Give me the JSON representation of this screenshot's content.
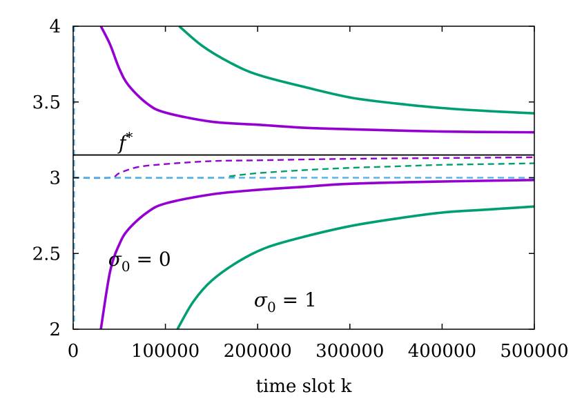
{
  "chart_data": {
    "type": "line",
    "xlabel": "time slot k",
    "ylabel": "",
    "xlim": [
      0,
      500000
    ],
    "ylim": [
      2,
      4
    ],
    "x_ticks": [
      0,
      100000,
      200000,
      300000,
      400000,
      500000
    ],
    "x_tick_labels": [
      "0",
      "100000",
      "200000",
      "300000",
      "400000",
      "500000"
    ],
    "y_ticks": [
      2,
      2.5,
      3,
      3.5,
      4
    ],
    "y_tick_labels": [
      "2",
      "2.5",
      "3",
      "3.5",
      "4"
    ],
    "grid": false,
    "reference_line": {
      "label": "f*",
      "y": 3.15,
      "color": "#000000"
    },
    "annotations": {
      "sigma0": {
        "prefix": "σ",
        "sub": "0",
        "eq": " = 0"
      },
      "sigma1": {
        "prefix": "σ",
        "sub": "0",
        "eq": " = 1"
      }
    },
    "series": [
      {
        "color": "#9400d3",
        "style": "solid",
        "x": [
          30000,
          40000,
          50000,
          60000,
          80000,
          100000,
          150000,
          200000,
          250000,
          300000,
          400000,
          500000
        ],
        "y": [
          4.0,
          3.88,
          3.72,
          3.61,
          3.49,
          3.43,
          3.37,
          3.35,
          3.33,
          3.32,
          3.305,
          3.3
        ]
      },
      {
        "color": "#9400d3",
        "style": "solid",
        "x": [
          30000,
          40000,
          50000,
          60000,
          80000,
          100000,
          150000,
          200000,
          250000,
          300000,
          400000,
          500000
        ],
        "y": [
          2.0,
          2.38,
          2.56,
          2.66,
          2.77,
          2.83,
          2.89,
          2.92,
          2.94,
          2.96,
          2.975,
          2.985
        ]
      },
      {
        "color": "#009e73",
        "style": "solid",
        "x": [
          115000,
          140000,
          170000,
          200000,
          250000,
          300000,
          350000,
          400000,
          450000,
          500000
        ],
        "y": [
          4.0,
          3.87,
          3.76,
          3.68,
          3.6,
          3.53,
          3.49,
          3.46,
          3.44,
          3.425
        ]
      },
      {
        "color": "#009e73",
        "style": "solid",
        "x": [
          113000,
          130000,
          150000,
          180000,
          210000,
          250000,
          300000,
          350000,
          400000,
          450000,
          500000
        ],
        "y": [
          2.0,
          2.18,
          2.32,
          2.45,
          2.54,
          2.61,
          2.68,
          2.73,
          2.77,
          2.79,
          2.81
        ]
      },
      {
        "color": "#9400d3",
        "style": "dashed",
        "x": [
          0,
          40000,
          50000,
          70000,
          100000,
          150000,
          200000,
          300000,
          400000,
          500000
        ],
        "y": [
          3.0,
          3.0,
          3.03,
          3.07,
          3.09,
          3.11,
          3.115,
          3.125,
          3.13,
          3.135
        ]
      },
      {
        "color": "#009e73",
        "style": "dashed",
        "x": [
          0,
          160000,
          170000,
          200000,
          250000,
          300000,
          350000,
          400000,
          450000,
          500000
        ],
        "y": [
          3.0,
          3.0,
          3.01,
          3.03,
          3.05,
          3.065,
          3.075,
          3.085,
          3.09,
          3.095
        ]
      },
      {
        "color": "#56b4e9",
        "style": "dashed",
        "x": [
          0,
          500000
        ],
        "y": [
          3.0,
          3.0
        ]
      },
      {
        "color": "#56b4e9",
        "style": "dashed",
        "x": [
          1000,
          1000
        ],
        "y": [
          2.05,
          4.0
        ]
      }
    ]
  }
}
